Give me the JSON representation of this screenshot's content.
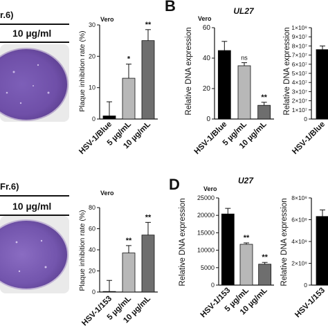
{
  "top_left": {
    "fragment_label": "r.6)",
    "concentration_label": "10 µg/ml"
  },
  "bottom_left": {
    "fragment_label": "Fr.6)",
    "concentration_label": "10 µg/ml"
  },
  "panel_letters": {
    "top": "B",
    "bottom": "D"
  },
  "colors": {
    "plate_purple": "#6f4fa8",
    "bar_black": "#000000",
    "bar_light": "#b8b8b8",
    "bar_dark": "#6e6e6e"
  },
  "chart_data": [
    {
      "type": "bar",
      "cell_label": "Vero",
      "title": "",
      "ylabel": "Plaque inhibition rate (%)",
      "ylim": [
        0,
        30
      ],
      "yticks": [
        0,
        10,
        20,
        30
      ],
      "categories": [
        "HSV-1/Blue",
        "5 µg/mL",
        "10 µg/mL"
      ],
      "values": [
        1,
        13,
        25
      ],
      "errors": [
        4.5,
        4.5,
        3.5
      ],
      "significance": [
        "",
        "*",
        "**"
      ],
      "bar_colors": [
        "#000000",
        "#b8b8b8",
        "#6e6e6e"
      ]
    },
    {
      "type": "bar",
      "cell_label": "Vero",
      "title": "UL27",
      "ylabel": "Relative DNA expression",
      "ylim": [
        0,
        60
      ],
      "yticks": [
        0,
        20,
        40,
        60
      ],
      "categories": [
        "HSV-1/Blue",
        "5 µg/mL",
        "10 µg/mL"
      ],
      "values": [
        45,
        35,
        9
      ],
      "errors": [
        6,
        2,
        2
      ],
      "significance": [
        "",
        "ns",
        "**"
      ],
      "bar_colors": [
        "#000000",
        "#b8b8b8",
        "#6e6e6e"
      ]
    },
    {
      "type": "bar",
      "cell_label": "",
      "title": "",
      "ylabel": "Relative DNA expression",
      "ylim": [
        0,
        100000000
      ],
      "yticks": [
        0,
        10000000,
        20000000,
        30000000,
        40000000,
        50000000,
        60000000,
        70000000,
        80000000,
        90000000,
        100000000
      ],
      "ytick_labels": [
        "0",
        "1×10⁷",
        "2×10⁷",
        "3×10⁷",
        "4×10⁷",
        "5×10⁷",
        "6×10⁷",
        "7×10⁷",
        "8×10⁷",
        "9×10⁷",
        "1×10⁸"
      ],
      "categories": [
        "HSV-1/Blue"
      ],
      "values": [
        76000000
      ],
      "errors": [
        4000000
      ],
      "significance": [
        ""
      ],
      "bar_colors": [
        "#000000"
      ]
    },
    {
      "type": "bar",
      "cell_label": "Vero",
      "title": "",
      "ylabel": "Plaque inhibition rate (%)",
      "ylim": [
        0,
        80
      ],
      "yticks": [
        0,
        20,
        40,
        60,
        80
      ],
      "categories": [
        "HSV-1/153",
        "5 µg/mL",
        "10 µg/mL"
      ],
      "values": [
        0,
        37,
        54
      ],
      "errors": [
        11,
        7,
        12
      ],
      "significance": [
        "",
        "**",
        "**"
      ],
      "bar_colors": [
        "#000000",
        "#b8b8b8",
        "#6e6e6e"
      ]
    },
    {
      "type": "bar",
      "cell_label": "Vero",
      "title": "U27",
      "ylabel": "Relative DNA expression",
      "ylim": [
        0,
        25000
      ],
      "yticks": [
        0,
        5000,
        10000,
        15000,
        20000,
        25000
      ],
      "categories": [
        "HSV-1/153",
        "5 µg/mL",
        "10 µg/mL"
      ],
      "values": [
        20400,
        11700,
        6000
      ],
      "errors": [
        1600,
        400,
        500
      ],
      "significance": [
        "",
        "**",
        "**"
      ],
      "bar_colors": [
        "#000000",
        "#b8b8b8",
        "#6e6e6e"
      ]
    },
    {
      "type": "bar",
      "cell_label": "",
      "title": "",
      "ylabel": "Relative DNA expression",
      "ylim": [
        0,
        800000000
      ],
      "yticks": [
        0,
        200000000,
        400000000,
        600000000,
        800000000
      ],
      "ytick_labels": [
        "0",
        "2×10⁸",
        "4×10⁸",
        "6×10⁸",
        "8×10⁸"
      ],
      "categories": [
        "HSV-1/153"
      ],
      "values": [
        630000000
      ],
      "errors": [
        60000000
      ],
      "significance": [
        ""
      ],
      "bar_colors": [
        "#000000"
      ]
    }
  ]
}
